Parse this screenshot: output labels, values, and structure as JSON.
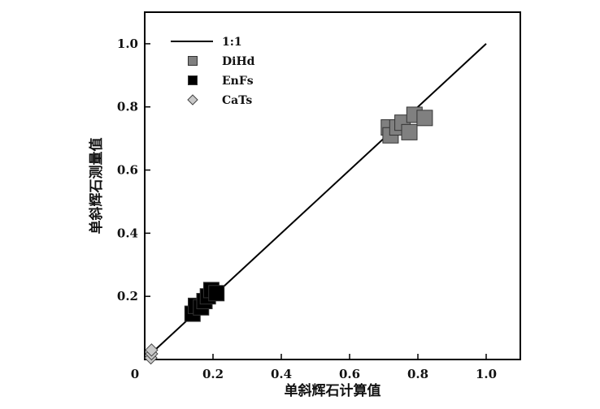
{
  "chart_data": {
    "type": "scatter",
    "xlabel": "单斜辉石计算值",
    "ylabel": "单斜辉石测量值",
    "xlim": [
      0,
      1.1
    ],
    "ylim": [
      0,
      1.1
    ],
    "x_ticks": [
      0.2,
      0.4,
      0.6,
      0.8,
      1.0
    ],
    "x_tick_labels": [
      "0.2",
      "0.4",
      "0.6",
      "0.8",
      "1.0"
    ],
    "y_ticks": [
      0.2,
      0.4,
      0.6,
      0.8,
      1.0
    ],
    "y_tick_labels": [
      "0.2",
      "0.4",
      "0.6",
      "0.8",
      "1.0"
    ],
    "origin_label": "0",
    "grid": false,
    "legend_position": "top-left",
    "reference_line": {
      "name": "1:1",
      "from": [
        0,
        0
      ],
      "to": [
        1.0,
        1.0
      ],
      "color": "#000000"
    },
    "series": [
      {
        "name": "DiHd",
        "marker": "square",
        "color": "#808080",
        "points": [
          [
            0.715,
            0.735
          ],
          [
            0.72,
            0.71
          ],
          [
            0.74,
            0.735
          ],
          [
            0.755,
            0.75
          ],
          [
            0.775,
            0.72
          ],
          [
            0.79,
            0.775
          ],
          [
            0.82,
            0.765
          ]
        ]
      },
      {
        "name": "EnFs",
        "marker": "square",
        "color": "#000000",
        "points": [
          [
            0.14,
            0.145
          ],
          [
            0.15,
            0.17
          ],
          [
            0.165,
            0.165
          ],
          [
            0.175,
            0.185
          ],
          [
            0.185,
            0.2
          ],
          [
            0.195,
            0.22
          ],
          [
            0.21,
            0.21
          ]
        ]
      },
      {
        "name": "CaTs",
        "marker": "diamond",
        "color": "#c8c8c8",
        "points": [
          [
            0.018,
            0.005
          ],
          [
            0.02,
            0.018
          ],
          [
            0.02,
            0.03
          ]
        ]
      }
    ]
  }
}
